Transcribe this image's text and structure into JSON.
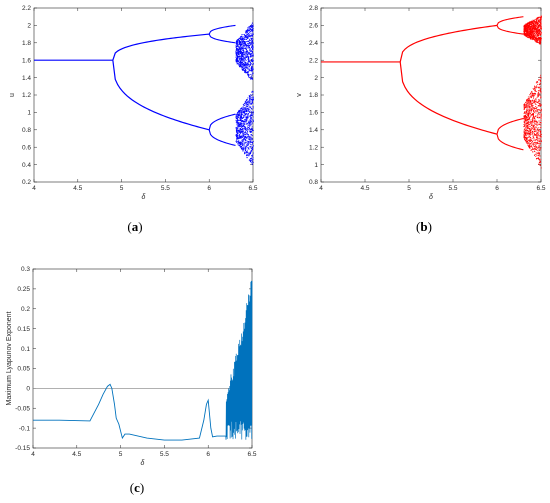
{
  "chart_data": [
    {
      "type": "scatter",
      "panel": "a",
      "caption_letter": "a",
      "xlabel": "δ",
      "ylabel": "u",
      "xlim": [
        4,
        6.5
      ],
      "ylim": [
        0.2,
        2.2
      ],
      "xticks": [
        "4",
        "4.5",
        "5",
        "5.5",
        "6",
        "6.5"
      ],
      "yticks": [
        "0.2",
        "0.4",
        "0.6",
        "0.8",
        "1",
        "1.2",
        "1.4",
        "1.6",
        "1.8",
        "2",
        "2.2"
      ],
      "color": "#0000ff",
      "fixed_point": 1.6,
      "bifurcation_1": 4.9,
      "branch_upper_end": 1.9,
      "branch_lower_end": 0.8,
      "bifurcation_2": 6.0,
      "chaos_onset": 6.3,
      "chaos_bands": [
        [
          1.35,
          2.05
        ],
        [
          0.38,
          1.27
        ]
      ]
    },
    {
      "type": "scatter",
      "panel": "b",
      "caption_letter": "b",
      "xlabel": "δ",
      "ylabel": "v",
      "xlim": [
        4,
        6.5
      ],
      "ylim": [
        0.8,
        2.8
      ],
      "xticks": [
        "4",
        "4.5",
        "5",
        "5.5",
        "6",
        "6.5"
      ],
      "yticks": [
        "0.8",
        "1",
        "1.2",
        "1.4",
        "1.6",
        "1.8",
        "2",
        "2.2",
        "2.4",
        "2.6",
        "2.8"
      ],
      "color": "#ff0000",
      "fixed_point": 2.18,
      "bifurcation_1": 4.9,
      "branch_upper_end": 2.6,
      "branch_lower_end": 1.35,
      "bifurcation_2": 6.0,
      "chaos_onset": 6.3,
      "chaos_bands": [
        [
          2.38,
          2.72
        ],
        [
          0.95,
          2.05
        ]
      ]
    },
    {
      "type": "line",
      "panel": "c",
      "caption_letter": "c",
      "xlabel": "δ",
      "ylabel": "Maximum Lyapunov Exponent",
      "xlim": [
        4,
        6.5
      ],
      "ylim": [
        -0.15,
        0.3
      ],
      "xticks": [
        "4",
        "4.5",
        "5",
        "5.5",
        "6",
        "6.5"
      ],
      "yticks": [
        "-0.15",
        "-0.1",
        "-0.05",
        "0",
        "0.05",
        "0.1",
        "0.15",
        "0.2",
        "0.25",
        "0.3"
      ],
      "color": "#0072bd",
      "zero_line_color": "#808080",
      "x": [
        4.0,
        4.3,
        4.65,
        4.75,
        4.8,
        4.85,
        4.88,
        4.9,
        4.93,
        4.95,
        4.98,
        5.02,
        5.05,
        5.1,
        5.3,
        5.5,
        5.7,
        5.9,
        5.95,
        5.98,
        6.0,
        6.03,
        6.05,
        6.1,
        6.15,
        6.2
      ],
      "y": [
        -0.08,
        -0.08,
        -0.082,
        -0.04,
        -0.015,
        0.005,
        0.01,
        0.0,
        -0.04,
        -0.075,
        -0.09,
        -0.125,
        -0.115,
        -0.115,
        -0.125,
        -0.13,
        -0.13,
        -0.125,
        -0.08,
        -0.04,
        -0.03,
        -0.1,
        -0.122,
        -0.12,
        -0.12,
        -0.12
      ],
      "chaotic_region": {
        "x_start": 6.2,
        "x_end": 6.5,
        "y_max": 0.27,
        "y_min": -0.13
      }
    }
  ]
}
